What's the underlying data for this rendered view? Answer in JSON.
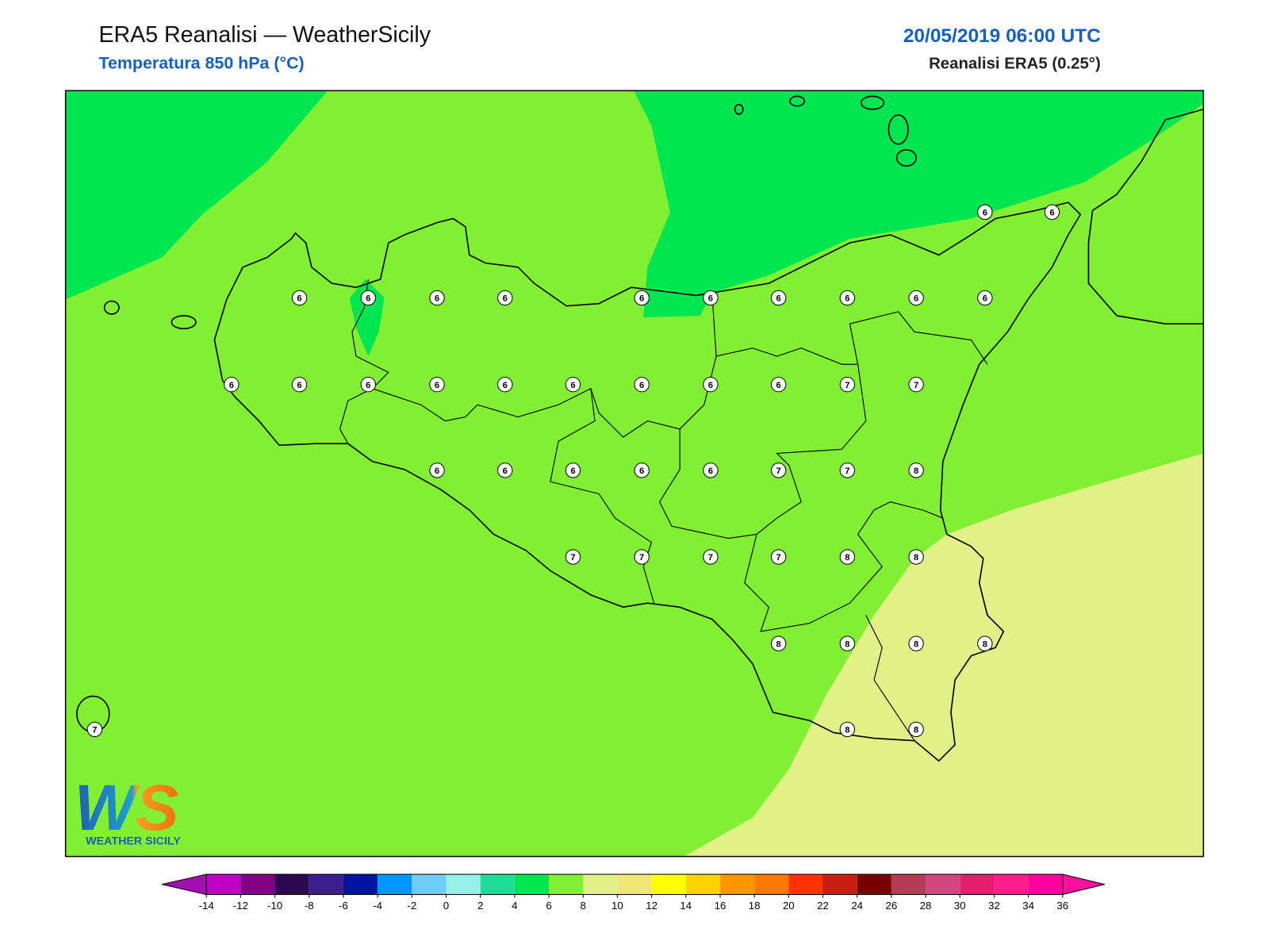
{
  "header": {
    "title": "ERA5 Reanalisi — WeatherSicily",
    "subtitle": "Temperatura 850 hPa (°C)",
    "datetime": "20/05/2019 06:00 UTC",
    "source": "Reanalisi ERA5 (0.25°)"
  },
  "map": {
    "point_values": [
      6,
      6,
      6,
      6,
      6,
      6,
      6,
      6,
      6,
      6,
      6,
      6,
      6,
      6,
      6,
      6,
      6,
      6,
      6,
      6,
      6,
      7,
      7,
      6,
      6,
      6,
      6,
      6,
      7,
      7,
      8,
      7,
      7,
      7,
      7,
      8,
      8,
      8,
      8,
      8,
      8,
      8,
      8,
      7
    ]
  },
  "colorbar": {
    "ticks": [
      -14,
      -12,
      -10,
      -8,
      -6,
      -4,
      -2,
      0,
      2,
      4,
      6,
      8,
      10,
      12,
      14,
      16,
      18,
      20,
      22,
      24,
      26,
      28,
      30,
      32,
      34,
      36
    ],
    "under_color": "#a010b0",
    "over_color": "#ff10a0",
    "colors": [
      "#c000c8",
      "#820082",
      "#2d0a50",
      "#3c1e8c",
      "#0014a0",
      "#0096ff",
      "#6ecdf5",
      "#96f0e6",
      "#1edc96",
      "#00e650",
      "#82f032",
      "#e1f087",
      "#f0e678",
      "#ffff00",
      "#ffd200",
      "#ff9600",
      "#ff7800",
      "#ff3200",
      "#c81e14",
      "#780000",
      "#b43c55",
      "#d24682",
      "#e61e6e",
      "#ff1e8c",
      "#ff00a0"
    ]
  },
  "logo": {
    "mark": "WS",
    "name": "WEATHER SICILY"
  }
}
